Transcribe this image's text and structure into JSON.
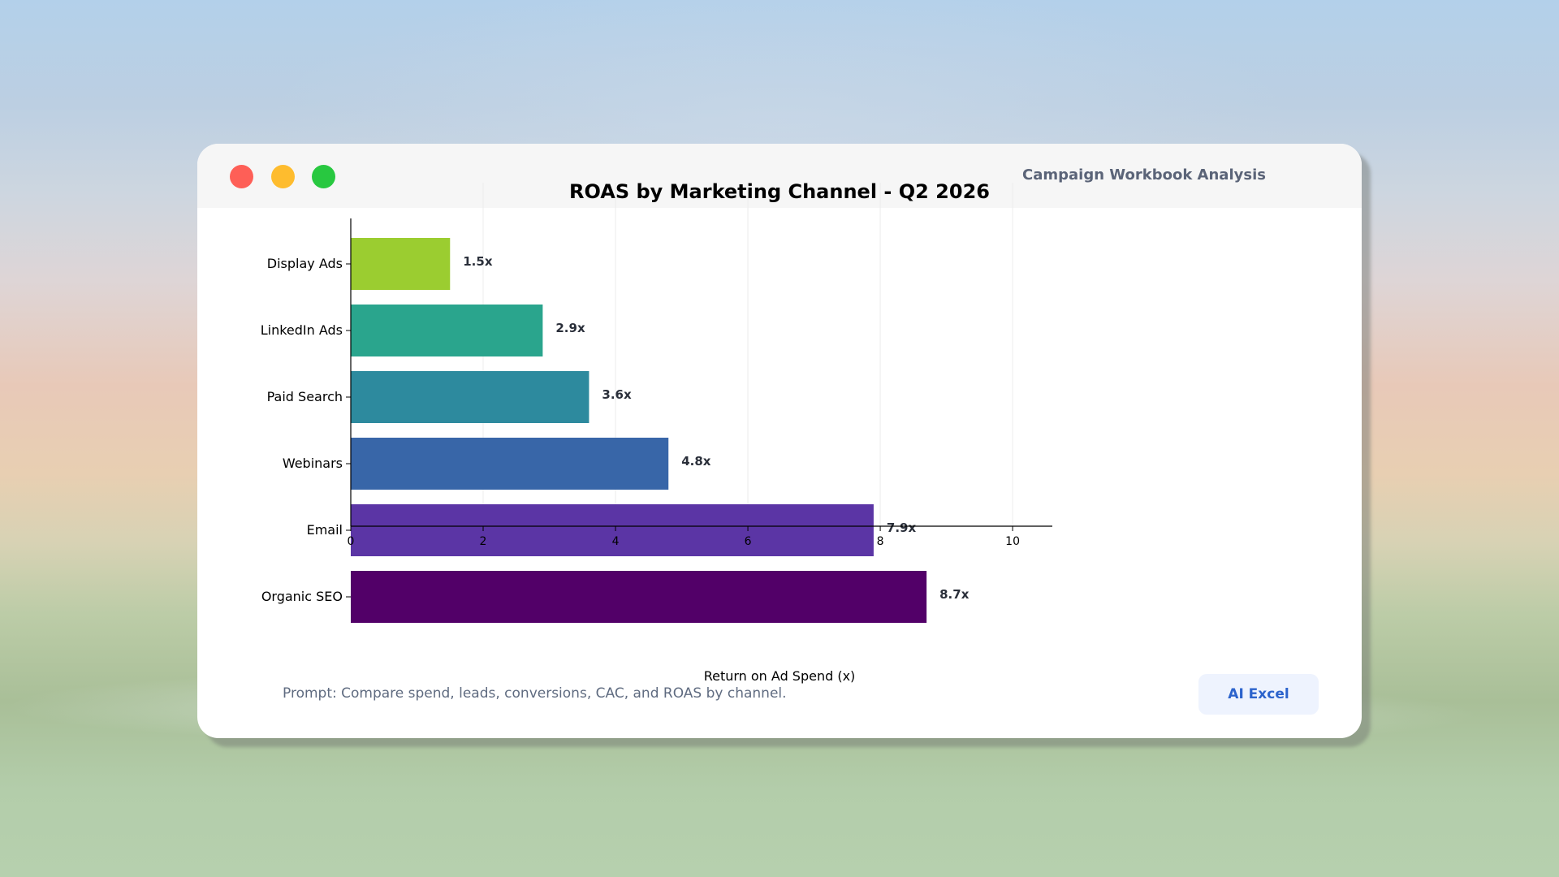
{
  "window": {
    "title": "Campaign Workbook Analysis",
    "traffic_lights": [
      "close",
      "minimize",
      "zoom"
    ]
  },
  "footer": {
    "prompt": "Prompt: Compare spend, leads, conversions, CAC, and ROAS by channel.",
    "ai_button_label": "AI Excel"
  },
  "chart_data": {
    "type": "bar",
    "orientation": "horizontal",
    "title": "ROAS by Marketing Channel - Q2 2026",
    "xlabel": "Return on Ad Spend (x)",
    "ylabel": "",
    "xlim": [
      0,
      10.6
    ],
    "xticks": [
      0,
      2,
      4,
      6,
      8,
      10
    ],
    "grid": "vertical",
    "categories": [
      "Display Ads",
      "LinkedIn Ads",
      "Paid Search",
      "Webinars",
      "Email",
      "Organic SEO"
    ],
    "values": [
      1.5,
      2.9,
      3.6,
      4.8,
      7.9,
      8.7
    ],
    "value_labels": [
      "1.5x",
      "2.9x",
      "3.6x",
      "4.8x",
      "7.9x",
      "8.7x"
    ],
    "colors": [
      "#9bcd30",
      "#2aa58d",
      "#2d8a9e",
      "#3866a8",
      "#5b35a5",
      "#520068"
    ]
  }
}
